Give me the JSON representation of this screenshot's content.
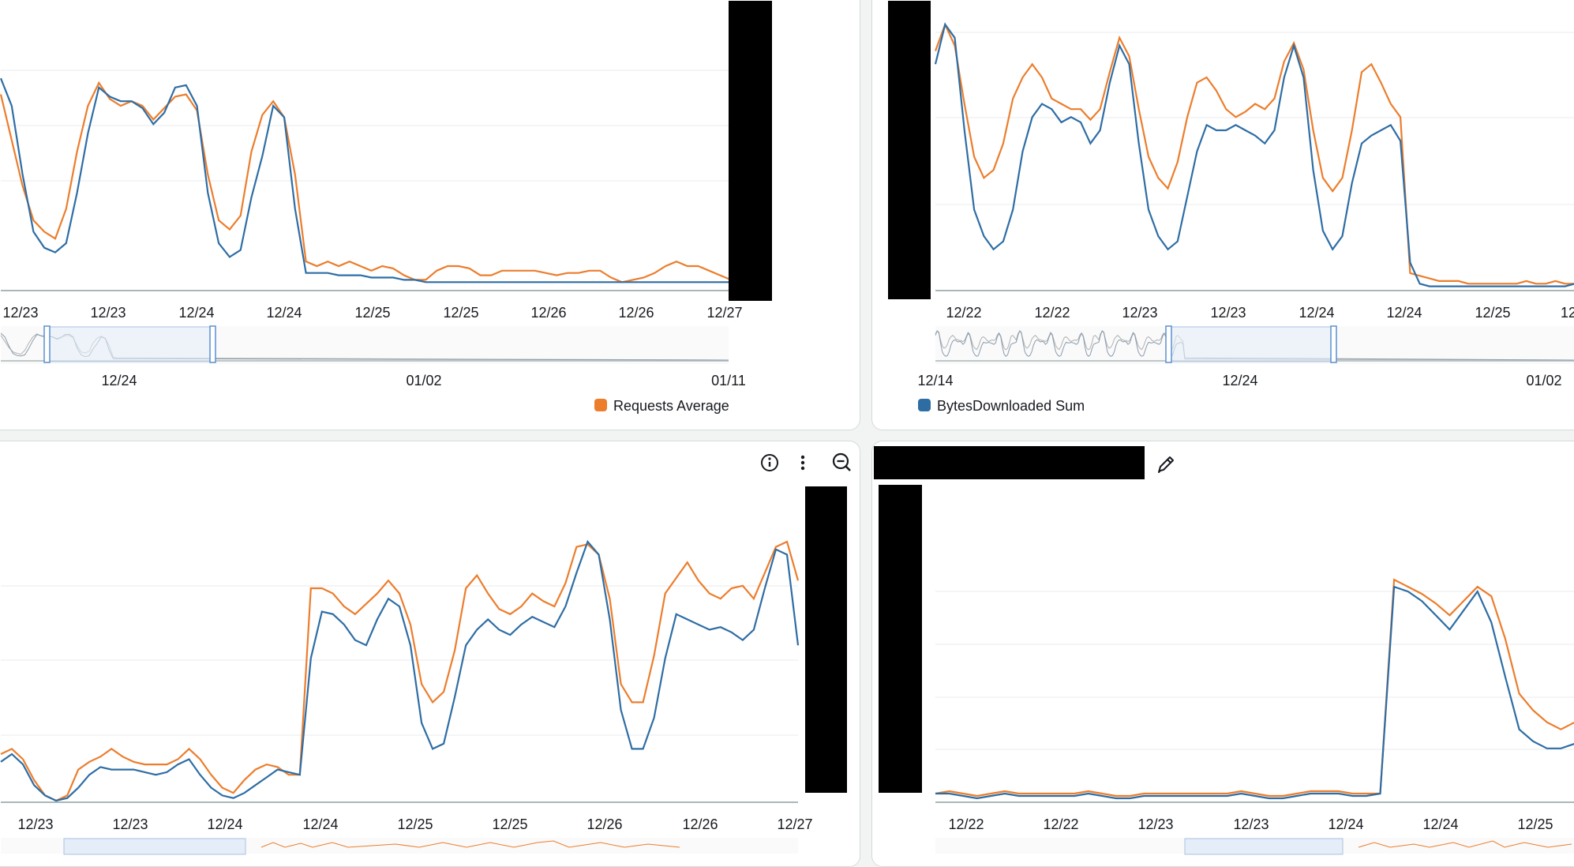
{
  "colors": {
    "blue": "#2e6da4",
    "orange": "#ec7d2c",
    "grid": "#e9ebed",
    "axis": "#aab7b8"
  },
  "panels": [
    {
      "id": "top-left",
      "axis_ticks": [
        "12/23",
        "12/23",
        "12/24",
        "12/24",
        "12/25",
        "12/25",
        "12/26",
        "12/26",
        "12/27"
      ],
      "nav_ticks": [
        "12/24",
        "01/02",
        "01/11"
      ],
      "legend": [
        {
          "label": "Requests Average",
          "color": "orange"
        }
      ],
      "series": {
        "blue": [
          0.92,
          0.8,
          0.5,
          0.25,
          0.18,
          0.16,
          0.2,
          0.42,
          0.68,
          0.88,
          0.84,
          0.82,
          0.82,
          0.79,
          0.72,
          0.77,
          0.88,
          0.89,
          0.8,
          0.42,
          0.2,
          0.14,
          0.17,
          0.4,
          0.58,
          0.8,
          0.75,
          0.35,
          0.07,
          0.07,
          0.07,
          0.06,
          0.06,
          0.06,
          0.05,
          0.05,
          0.05,
          0.04,
          0.04,
          0.03,
          0.03,
          0.03,
          0.03,
          0.03,
          0.03,
          0.03,
          0.03,
          0.03,
          0.03,
          0.03,
          0.03,
          0.03,
          0.03,
          0.03,
          0.03,
          0.03,
          0.03,
          0.03,
          0.03,
          0.03,
          0.03,
          0.03,
          0.03,
          0.03,
          0.03,
          0.03,
          0.03,
          0.03
        ],
        "orange": [
          0.85,
          0.65,
          0.45,
          0.3,
          0.25,
          0.22,
          0.35,
          0.6,
          0.8,
          0.9,
          0.83,
          0.8,
          0.82,
          0.8,
          0.74,
          0.79,
          0.84,
          0.85,
          0.78,
          0.5,
          0.3,
          0.26,
          0.32,
          0.6,
          0.76,
          0.82,
          0.75,
          0.5,
          0.12,
          0.1,
          0.12,
          0.1,
          0.12,
          0.1,
          0.08,
          0.1,
          0.09,
          0.06,
          0.04,
          0.04,
          0.08,
          0.1,
          0.1,
          0.09,
          0.06,
          0.06,
          0.08,
          0.08,
          0.08,
          0.08,
          0.07,
          0.06,
          0.07,
          0.07,
          0.08,
          0.08,
          0.05,
          0.03,
          0.04,
          0.05,
          0.07,
          0.1,
          0.12,
          0.1,
          0.1,
          0.08,
          0.06,
          0.04
        ]
      }
    },
    {
      "id": "top-right",
      "axis_ticks": [
        "12/22",
        "12/22",
        "12/23",
        "12/23",
        "12/24",
        "12/24",
        "12/25",
        "12"
      ],
      "nav_ticks": [
        "12/14",
        "12/24",
        "01/02"
      ],
      "legend": [
        {
          "label": "BytesDownloaded Sum",
          "color": "blue"
        }
      ],
      "series": {
        "blue": [
          0.85,
          1.0,
          0.95,
          0.6,
          0.3,
          0.2,
          0.15,
          0.18,
          0.3,
          0.52,
          0.65,
          0.7,
          0.68,
          0.63,
          0.65,
          0.63,
          0.55,
          0.6,
          0.78,
          0.92,
          0.85,
          0.55,
          0.3,
          0.2,
          0.15,
          0.18,
          0.35,
          0.52,
          0.62,
          0.6,
          0.6,
          0.62,
          0.6,
          0.58,
          0.55,
          0.6,
          0.8,
          0.92,
          0.8,
          0.45,
          0.22,
          0.15,
          0.2,
          0.4,
          0.55,
          0.58,
          0.6,
          0.62,
          0.56,
          0.1,
          0.02,
          0.01,
          0.01,
          0.01,
          0.01,
          0.01,
          0.01,
          0.01,
          0.01,
          0.01,
          0.01,
          0.01,
          0.01,
          0.01,
          0.01,
          0.01,
          0.02
        ],
        "orange": [
          0.9,
          1.0,
          0.92,
          0.7,
          0.5,
          0.42,
          0.45,
          0.55,
          0.72,
          0.8,
          0.85,
          0.8,
          0.72,
          0.7,
          0.68,
          0.68,
          0.64,
          0.68,
          0.82,
          0.95,
          0.88,
          0.68,
          0.5,
          0.42,
          0.38,
          0.48,
          0.65,
          0.78,
          0.8,
          0.75,
          0.68,
          0.65,
          0.67,
          0.7,
          0.68,
          0.72,
          0.86,
          0.93,
          0.83,
          0.6,
          0.42,
          0.37,
          0.42,
          0.6,
          0.82,
          0.85,
          0.78,
          0.7,
          0.65,
          0.06,
          0.05,
          0.04,
          0.03,
          0.03,
          0.03,
          0.02,
          0.02,
          0.02,
          0.02,
          0.02,
          0.02,
          0.03,
          0.02,
          0.02,
          0.03,
          0.02,
          0.02
        ]
      }
    },
    {
      "id": "bottom-left",
      "axis_ticks": [
        "12/23",
        "12/23",
        "12/24",
        "12/24",
        "12/25",
        "12/25",
        "12/26",
        "12/26",
        "12/27"
      ],
      "toolbar": [
        "info-icon",
        "more-options-icon",
        "zoom-out-icon"
      ],
      "series": {
        "blue": [
          0.15,
          0.18,
          0.14,
          0.06,
          0.02,
          0.0,
          0.01,
          0.05,
          0.1,
          0.13,
          0.12,
          0.12,
          0.12,
          0.11,
          0.1,
          0.11,
          0.14,
          0.16,
          0.1,
          0.05,
          0.02,
          0.01,
          0.03,
          0.06,
          0.09,
          0.12,
          0.11,
          0.1,
          0.55,
          0.73,
          0.72,
          0.68,
          0.62,
          0.6,
          0.7,
          0.78,
          0.75,
          0.6,
          0.3,
          0.2,
          0.22,
          0.4,
          0.6,
          0.66,
          0.7,
          0.66,
          0.64,
          0.68,
          0.71,
          0.69,
          0.67,
          0.75,
          0.88,
          1.0,
          0.95,
          0.7,
          0.35,
          0.2,
          0.2,
          0.32,
          0.55,
          0.72,
          0.7,
          0.68,
          0.66,
          0.67,
          0.65,
          0.62,
          0.66,
          0.82,
          0.97,
          0.95,
          0.6
        ],
        "orange": [
          0.18,
          0.2,
          0.16,
          0.08,
          0.02,
          0.0,
          0.02,
          0.12,
          0.15,
          0.17,
          0.2,
          0.17,
          0.15,
          0.14,
          0.14,
          0.14,
          0.16,
          0.2,
          0.16,
          0.1,
          0.05,
          0.03,
          0.08,
          0.12,
          0.14,
          0.13,
          0.1,
          0.1,
          0.82,
          0.82,
          0.8,
          0.75,
          0.72,
          0.76,
          0.8,
          0.85,
          0.8,
          0.68,
          0.45,
          0.38,
          0.42,
          0.58,
          0.82,
          0.87,
          0.8,
          0.74,
          0.72,
          0.75,
          0.8,
          0.77,
          0.75,
          0.84,
          0.98,
          0.99,
          0.95,
          0.78,
          0.45,
          0.38,
          0.38,
          0.56,
          0.8,
          0.86,
          0.92,
          0.85,
          0.8,
          0.78,
          0.82,
          0.83,
          0.78,
          0.88,
          0.98,
          1.0,
          0.85
        ]
      }
    },
    {
      "id": "bottom-right",
      "axis_ticks": [
        "12/22",
        "12/22",
        "12/23",
        "12/23",
        "12/24",
        "12/24",
        "12/25"
      ],
      "toolbar": [
        "edit-icon"
      ],
      "series": {
        "blue": [
          0.03,
          0.03,
          0.02,
          0.01,
          0.02,
          0.03,
          0.02,
          0.02,
          0.02,
          0.02,
          0.02,
          0.03,
          0.02,
          0.01,
          0.01,
          0.02,
          0.02,
          0.02,
          0.02,
          0.02,
          0.02,
          0.02,
          0.03,
          0.02,
          0.01,
          0.01,
          0.02,
          0.03,
          0.03,
          0.03,
          0.02,
          0.02,
          0.03,
          0.9,
          0.88,
          0.84,
          0.78,
          0.72,
          0.8,
          0.88,
          0.75,
          0.52,
          0.3,
          0.25,
          0.22,
          0.22,
          0.24
        ],
        "orange": [
          0.03,
          0.04,
          0.03,
          0.02,
          0.03,
          0.04,
          0.03,
          0.03,
          0.03,
          0.03,
          0.03,
          0.04,
          0.03,
          0.02,
          0.02,
          0.03,
          0.03,
          0.03,
          0.03,
          0.03,
          0.03,
          0.03,
          0.04,
          0.03,
          0.02,
          0.02,
          0.03,
          0.04,
          0.04,
          0.04,
          0.03,
          0.03,
          0.03,
          0.93,
          0.9,
          0.87,
          0.83,
          0.78,
          0.84,
          0.9,
          0.86,
          0.68,
          0.45,
          0.38,
          0.33,
          0.3,
          0.33
        ]
      }
    }
  ]
}
